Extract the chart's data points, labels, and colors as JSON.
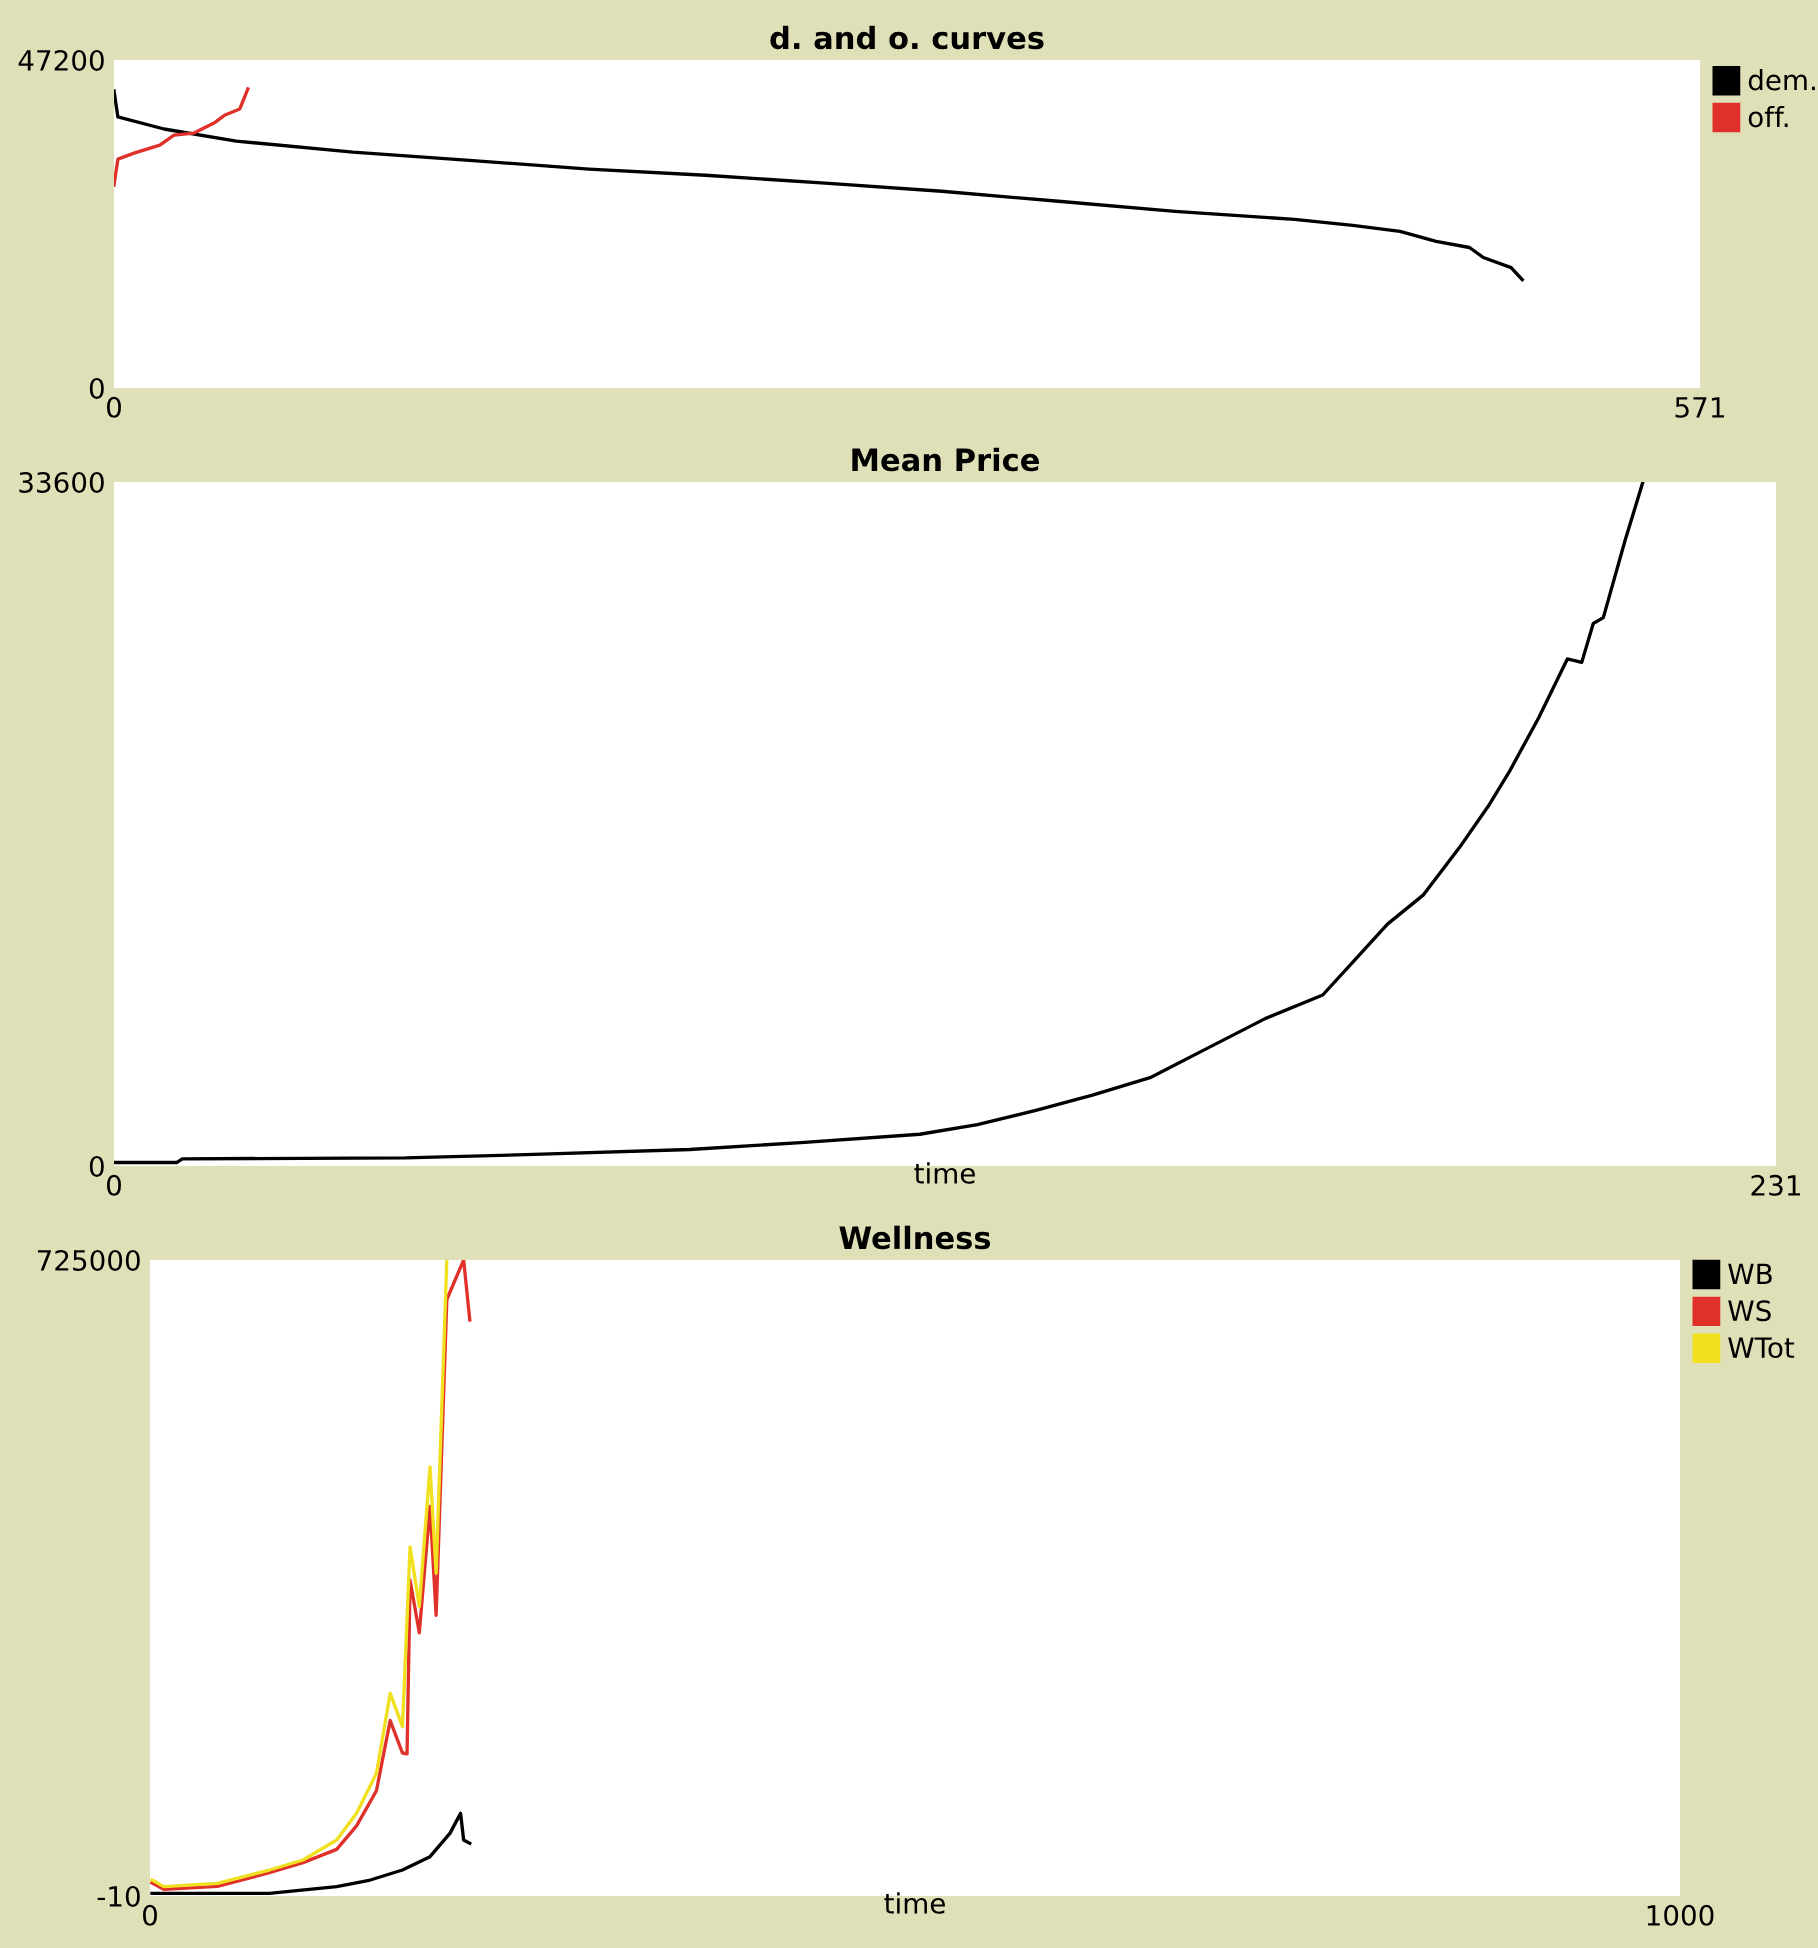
{
  "chart_data": [
    {
      "type": "line",
      "title": "d. and o. curves",
      "xlim": [
        0,
        571
      ],
      "ylim": [
        0,
        47200
      ],
      "xticks": [
        0,
        571
      ],
      "yticks": [
        0,
        47200
      ],
      "grid": false,
      "legend": "right",
      "marker": "none",
      "line_style": "solid",
      "series": [
        {
          "name": "dem.",
          "color": "#000000",
          "x": [
            0,
            1.4,
            18,
            44,
            86,
            128,
            171,
            213,
            256,
            298,
            340,
            382,
            425,
            446,
            463,
            476,
            488,
            493,
            503,
            507
          ],
          "values": [
            42760,
            39000,
            37270,
            35530,
            33950,
            32760,
            31490,
            30620,
            29470,
            28310,
            26870,
            25420,
            24270,
            23400,
            22530,
            21090,
            20220,
            18780,
            17330,
            15600
          ]
        },
        {
          "name": "off.",
          "color": "#e0302a",
          "x": [
            0,
            1.4,
            7.2,
            16.5,
            21.6,
            28.8,
            36,
            40,
            45.3,
            48.2
          ],
          "values": [
            29180,
            32930,
            33800,
            34960,
            36400,
            36690,
            38130,
            39290,
            40160,
            43050
          ]
        }
      ]
    },
    {
      "type": "line",
      "title": "Mean Price",
      "xlabel": "time",
      "xlim": [
        0,
        231
      ],
      "ylim": [
        0,
        33600
      ],
      "xticks": [
        0,
        231
      ],
      "yticks": [
        0,
        33600
      ],
      "grid": false,
      "marker": "none",
      "line_style": "solid",
      "series": [
        {
          "color": "#000000",
          "x": [
            0,
            8.7,
            9.5,
            40.5,
            59.5,
            80,
            96,
            112,
            120,
            128,
            136,
            144,
            152,
            160,
            168,
            172.5,
            177,
            182,
            187,
            191,
            194,
            198,
            202,
            204,
            205.6,
            207,
            210,
            212.5
          ],
          "values": [
            170,
            170,
            350,
            400,
            580,
            810,
            1160,
            1560,
            2030,
            2720,
            3480,
            4340,
            5790,
            7240,
            8400,
            10140,
            11880,
            13320,
            15640,
            17670,
            19410,
            22010,
            24910,
            24740,
            26650,
            26940,
            30700,
            33600
          ]
        }
      ]
    },
    {
      "type": "line",
      "title": "Wellness",
      "xlabel": "time",
      "xlim": [
        0,
        1000
      ],
      "ylim": [
        -10,
        725000
      ],
      "xticks": [
        0,
        1000
      ],
      "yticks": [
        -10,
        725000
      ],
      "grid": false,
      "legend": "right",
      "marker": "none",
      "line_style": "solid",
      "series": [
        {
          "name": "WB",
          "color": "#000000",
          "x": [
            1.3,
            78,
            122,
            144,
            165,
            183,
            196,
            203,
            205,
            209
          ],
          "values": [
            3000,
            3000,
            10700,
            18200,
            29600,
            44800,
            71400,
            94200,
            63800,
            60000
          ]
        },
        {
          "name": "WS",
          "color": "#e0302a",
          "x": [
            1.3,
            9,
            44,
            78,
            100,
            122,
            135,
            148,
            157,
            165,
            168,
            170,
            176,
            183,
            187,
            194,
            205,
            209
          ],
          "values": [
            15000,
            7700,
            11000,
            26600,
            38000,
            53100,
            80000,
            120000,
            200000,
            163000,
            162000,
            360000,
            300000,
            444000,
            320000,
            680000,
            725000,
            656600
          ]
        },
        {
          "name": "WTot",
          "color": "#f0e020",
          "x": [
            1.3,
            9,
            44,
            78,
            100,
            122,
            135,
            148,
            157,
            165,
            170,
            176,
            183,
            187,
            194
          ],
          "values": [
            18240,
            10700,
            14400,
            29600,
            41000,
            63800,
            94200,
            139800,
            231000,
            193000,
            398000,
            330000,
            489000,
            368000,
            725000
          ]
        }
      ]
    }
  ]
}
